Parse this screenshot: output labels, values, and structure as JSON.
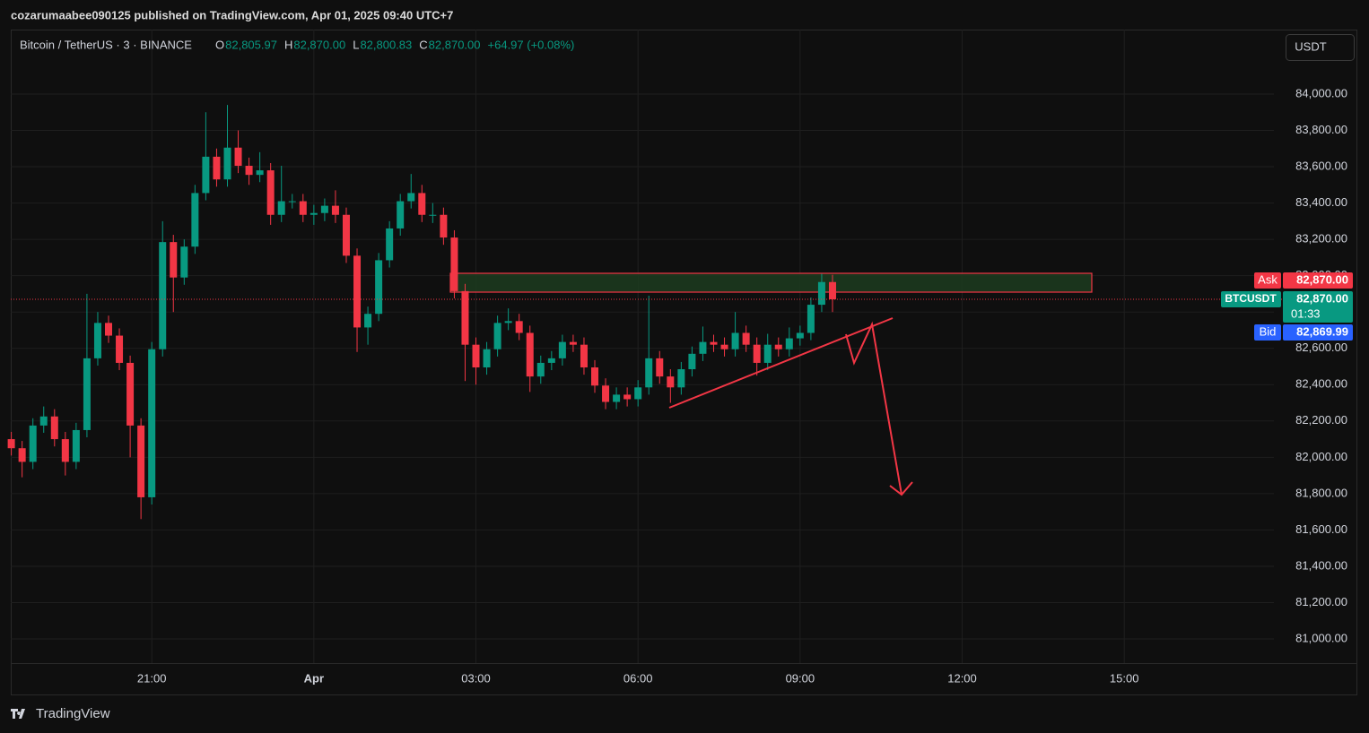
{
  "header": {
    "publisher": "cozarumaabee090125 published on TradingView.com, Apr 01, 2025 09:40 UTC+7"
  },
  "footer": {
    "brand": "TradingView"
  },
  "chart_data": {
    "type": "candlestick",
    "title": "Bitcoin / TetherUS · 3 · BINANCE",
    "quote": [
      {
        "label": "O",
        "value": "82,805.97"
      },
      {
        "label": "H",
        "value": "82,870.00"
      },
      {
        "label": "L",
        "value": "82,800.83"
      },
      {
        "label": "C",
        "value": "82,870.00"
      }
    ],
    "change": "+64.97 (+0.08%)",
    "currency": "USDT",
    "up_color": "#089981",
    "down_color": "#f23645",
    "grid": true,
    "xlim": [
      18.39,
      41.77
    ],
    "xticks": [
      {
        "value": 21,
        "label": "21:00"
      },
      {
        "value": 24,
        "label": "Apr"
      },
      {
        "value": 27,
        "label": "03:00"
      },
      {
        "value": 30,
        "label": "06:00"
      },
      {
        "value": 33,
        "label": "09:00"
      },
      {
        "value": 36,
        "label": "12:00"
      },
      {
        "value": 39,
        "label": "15:00"
      }
    ],
    "ylim": [
      80867,
      84355
    ],
    "yticks": [
      {
        "value": 81000,
        "label": "81,000.00"
      },
      {
        "value": 81200,
        "label": "81,200.00"
      },
      {
        "value": 81400,
        "label": "81,400.00"
      },
      {
        "value": 81600,
        "label": "81,600.00"
      },
      {
        "value": 81800,
        "label": "81,800.00"
      },
      {
        "value": 82000,
        "label": "82,000.00"
      },
      {
        "value": 82200,
        "label": "82,200.00"
      },
      {
        "value": 82400,
        "label": "82,400.00"
      },
      {
        "value": 82600,
        "label": "82,600.00"
      },
      {
        "value": 82800,
        "label": "82,800.00"
      },
      {
        "value": 83000,
        "label": "83,000.00"
      },
      {
        "value": 83200,
        "label": "83,200.00"
      },
      {
        "value": 83400,
        "label": "83,400.00"
      },
      {
        "value": 83600,
        "label": "83,600.00"
      },
      {
        "value": 83800,
        "label": "83,800.00"
      },
      {
        "value": 84000,
        "label": "84,000.00"
      }
    ],
    "x": [
      18.4,
      18.6,
      18.8,
      19,
      19.2,
      19.4,
      19.6,
      19.8,
      20,
      20.2,
      20.4,
      20.6,
      20.8,
      21,
      21.2,
      21.4,
      21.6,
      21.8,
      22,
      22.2,
      22.4,
      22.6,
      22.8,
      23,
      23.2,
      23.4,
      23.6,
      23.8,
      24,
      24.2,
      24.4,
      24.6,
      24.8,
      25,
      25.2,
      25.4,
      25.6,
      25.8,
      26,
      26.2,
      26.4,
      26.6,
      26.8,
      27,
      27.2,
      27.4,
      27.6,
      27.8,
      28,
      28.2,
      28.4,
      28.6,
      28.8,
      29,
      29.2,
      29.4,
      29.6,
      29.8,
      30,
      30.2,
      30.4,
      30.6,
      30.8,
      31,
      31.2,
      31.4,
      31.6,
      31.8,
      32,
      32.2,
      32.4,
      32.6,
      32.8,
      33,
      33.2,
      33.4,
      33.6
    ],
    "open": [
      82100,
      82050,
      81975,
      82175,
      82225,
      82100,
      81975,
      82150,
      82545,
      82740,
      82670,
      82520,
      82175,
      81780,
      82595,
      83185,
      82990,
      83160,
      83455,
      83655,
      83530,
      83705,
      83605,
      83555,
      83580,
      83335,
      83410,
      83410,
      83335,
      83345,
      83385,
      83335,
      83110,
      82715,
      82790,
      83085,
      83260,
      83410,
      83455,
      83335,
      83335,
      83210,
      82915,
      82620,
      82495,
      82595,
      82740,
      82750,
      82685,
      82445,
      82520,
      82545,
      82635,
      82620,
      82495,
      82395,
      82305,
      82345,
      82320,
      82385,
      82545,
      82445,
      82385,
      82485,
      82570,
      82635,
      82620,
      82595,
      82685,
      82620,
      82520,
      82620,
      82595,
      82655,
      82685,
      82840,
      82965
    ],
    "high": [
      82140,
      82090,
      82215,
      82280,
      82265,
      82140,
      82190,
      82900,
      82800,
      82780,
      82710,
      82560,
      82215,
      82635,
      83300,
      83225,
      83200,
      83500,
      83900,
      83700,
      83940,
      83800,
      83650,
      83680,
      83620,
      83605,
      83450,
      83450,
      83390,
      83425,
      83470,
      83375,
      83150,
      82830,
      83125,
      83300,
      83450,
      83560,
      83500,
      83400,
      83375,
      83250,
      82955,
      82660,
      82635,
      82780,
      82820,
      82790,
      82725,
      82560,
      82585,
      82675,
      82675,
      82660,
      82535,
      82435,
      82385,
      82385,
      82425,
      82890,
      82585,
      82485,
      82525,
      82610,
      82720,
      82675,
      82660,
      82800,
      82725,
      82660,
      82680,
      82660,
      82715,
      82725,
      82880,
      83010,
      83005
    ],
    "low": [
      82010,
      81890,
      81935,
      82135,
      82060,
      81900,
      81935,
      82110,
      82505,
      82630,
      82480,
      82000,
      81660,
      81740,
      82555,
      82800,
      82950,
      83120,
      83415,
      83490,
      83490,
      83565,
      83500,
      83515,
      83280,
      83295,
      83370,
      83295,
      83280,
      83300,
      83290,
      83070,
      82580,
      82620,
      82750,
      83045,
      83220,
      83370,
      83295,
      83290,
      83170,
      82875,
      82420,
      82400,
      82455,
      82555,
      82700,
      82645,
      82360,
      82405,
      82480,
      82505,
      82580,
      82455,
      82355,
      82265,
      82265,
      82280,
      82280,
      82345,
      82405,
      82300,
      82345,
      82445,
      82530,
      82580,
      82555,
      82555,
      82580,
      82450,
      82480,
      82555,
      82555,
      82615,
      82645,
      82800,
      82800
    ],
    "close": [
      82050,
      81975,
      82175,
      82225,
      82100,
      81975,
      82150,
      82545,
      82740,
      82670,
      82520,
      82175,
      81780,
      82595,
      83185,
      82990,
      83160,
      83455,
      83655,
      83530,
      83705,
      83605,
      83555,
      83580,
      83335,
      83410,
      83410,
      83335,
      83345,
      83385,
      83335,
      83110,
      82715,
      82790,
      83085,
      83260,
      83410,
      83455,
      83335,
      83335,
      83210,
      82915,
      82620,
      82495,
      82595,
      82740,
      82750,
      82685,
      82445,
      82520,
      82545,
      82635,
      82620,
      82495,
      82395,
      82305,
      82345,
      82320,
      82385,
      82545,
      82445,
      82385,
      82485,
      82570,
      82635,
      82620,
      82595,
      82685,
      82620,
      82520,
      82620,
      82595,
      82655,
      82685,
      82840,
      82965,
      82870
    ],
    "last_price": {
      "value": 82870,
      "label": "82,870.00",
      "name": "BTCUSDT",
      "countdown": "01:33"
    },
    "ask": {
      "value": 82870,
      "label": "82,870.00",
      "name": "Ask"
    },
    "bid": {
      "value": 82869.99,
      "label": "82,869.99",
      "name": "Bid"
    }
  }
}
